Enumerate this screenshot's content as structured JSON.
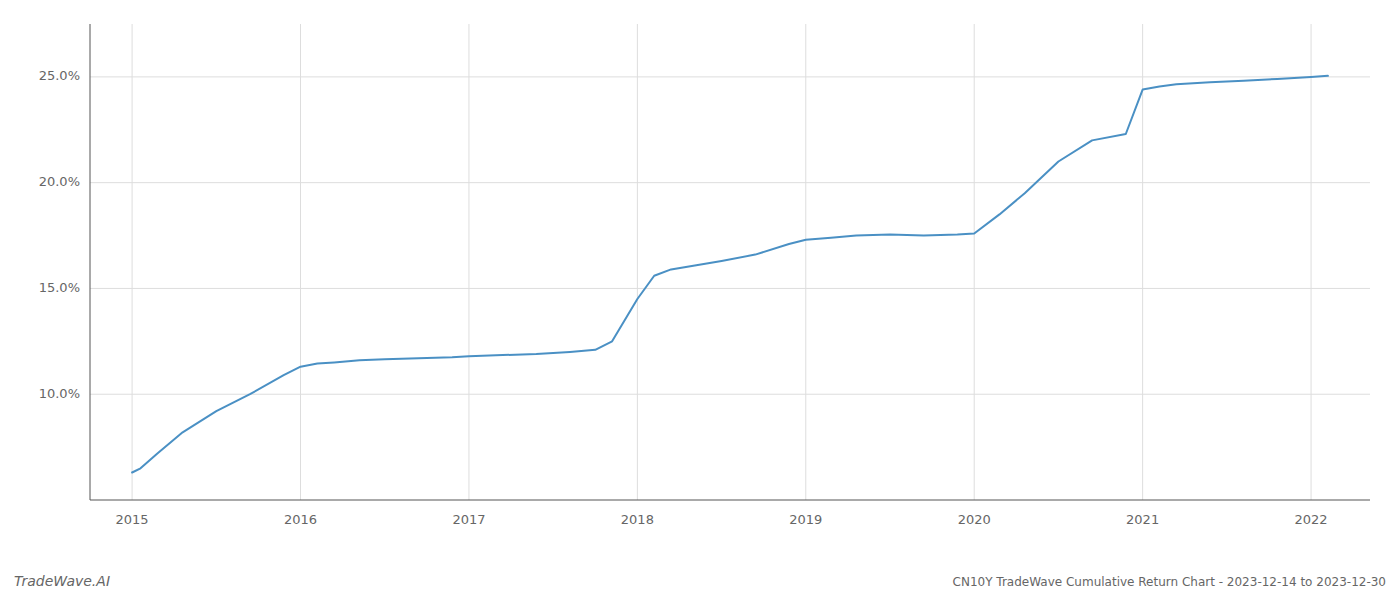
{
  "chart_data": {
    "type": "line",
    "title": "CN10Y TradeWave Cumulative Return Chart - 2023-12-14 to 2023-12-30",
    "annotations": [
      "TradeWave.AI"
    ],
    "color": "#4a90c4",
    "x": [
      2015.0,
      2015.05,
      2015.15,
      2015.3,
      2015.5,
      2015.7,
      2015.9,
      2016.0,
      2016.1,
      2016.2,
      2016.35,
      2016.5,
      2016.7,
      2016.9,
      2017.0,
      2017.2,
      2017.4,
      2017.6,
      2017.75,
      2017.85,
      2018.0,
      2018.1,
      2018.2,
      2018.35,
      2018.5,
      2018.7,
      2018.9,
      2019.0,
      2019.15,
      2019.3,
      2019.5,
      2019.7,
      2019.9,
      2020.0,
      2020.15,
      2020.3,
      2020.5,
      2020.7,
      2020.9,
      2021.0,
      2021.1,
      2021.2,
      2021.4,
      2021.6,
      2021.8,
      2022.0,
      2022.1
    ],
    "values": [
      6.3,
      6.5,
      7.2,
      8.2,
      9.2,
      10.0,
      10.9,
      11.3,
      11.45,
      11.5,
      11.6,
      11.65,
      11.7,
      11.75,
      11.8,
      11.85,
      11.9,
      12.0,
      12.1,
      12.5,
      14.5,
      15.6,
      15.9,
      16.1,
      16.3,
      16.6,
      17.1,
      17.3,
      17.4,
      17.5,
      17.55,
      17.5,
      17.55,
      17.6,
      18.5,
      19.5,
      21.0,
      22.0,
      22.3,
      24.4,
      24.55,
      24.65,
      24.75,
      24.82,
      24.9,
      25.0,
      25.05
    ],
    "xlim": [
      2014.75,
      2022.35
    ],
    "ylim": [
      5.0,
      27.5
    ],
    "xticks": [
      2015,
      2016,
      2017,
      2018,
      2019,
      2020,
      2021,
      2022
    ],
    "yticks": [
      {
        "value": 10.0,
        "label": "10.0%"
      },
      {
        "value": 15.0,
        "label": "15.0%"
      },
      {
        "value": 20.0,
        "label": "20.0%"
      },
      {
        "value": 25.0,
        "label": "25.0%"
      }
    ],
    "grid": true
  }
}
